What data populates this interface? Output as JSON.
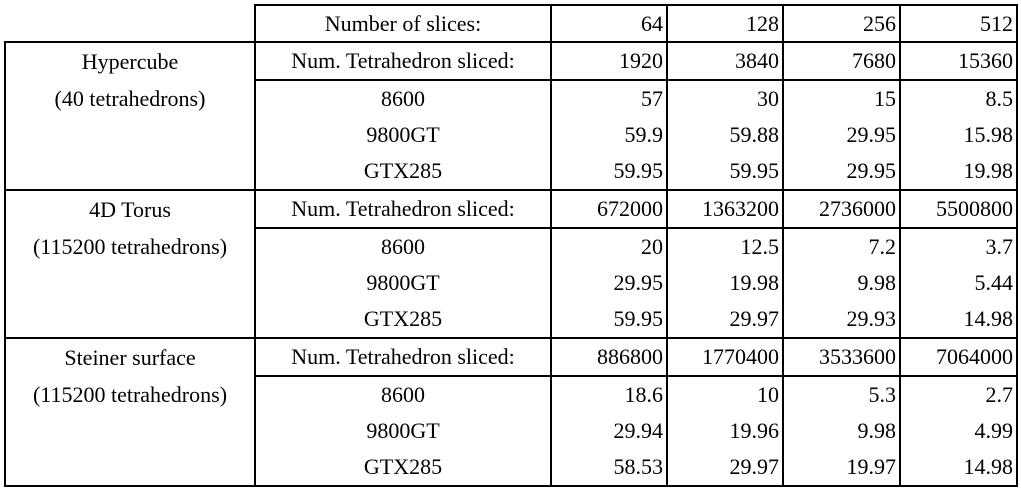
{
  "slices_label": "Number of slices:",
  "slices": [
    "64",
    "128",
    "256",
    "512"
  ],
  "groups": [
    {
      "name": "Hypercube",
      "subtitle": "(40 tetrahedrons)",
      "rows": [
        {
          "label": "Num. Tetrahedron sliced:",
          "values": [
            "1920",
            "3840",
            "7680",
            "15360"
          ]
        },
        {
          "label": "8600",
          "values": [
            "57",
            "30",
            "15",
            "8.5"
          ]
        },
        {
          "label": "9800GT",
          "values": [
            "59.9",
            "59.88",
            "29.95",
            "15.98"
          ]
        },
        {
          "label": "GTX285",
          "values": [
            "59.95",
            "59.95",
            "29.95",
            "19.98"
          ]
        }
      ]
    },
    {
      "name": "4D Torus",
      "subtitle": "(115200 tetrahedrons)",
      "rows": [
        {
          "label": "Num. Tetrahedron sliced:",
          "values": [
            "672000",
            "1363200",
            "2736000",
            "5500800"
          ]
        },
        {
          "label": "8600",
          "values": [
            "20",
            "12.5",
            "7.2",
            "3.7"
          ]
        },
        {
          "label": "9800GT",
          "values": [
            "29.95",
            "19.98",
            "9.98",
            "5.44"
          ]
        },
        {
          "label": "GTX285",
          "values": [
            "59.95",
            "29.97",
            "29.93",
            "14.98"
          ]
        }
      ]
    },
    {
      "name": "Steiner surface",
      "subtitle": "(115200 tetrahedrons)",
      "rows": [
        {
          "label": "Num. Tetrahedron sliced:",
          "values": [
            "886800",
            "1770400",
            "3533600",
            "7064000"
          ]
        },
        {
          "label": "8600",
          "values": [
            "18.6",
            "10",
            "5.3",
            "2.7"
          ]
        },
        {
          "label": "9800GT",
          "values": [
            "29.94",
            "19.96",
            "9.98",
            "4.99"
          ]
        },
        {
          "label": "GTX285",
          "values": [
            "58.53",
            "29.97",
            "19.97",
            "14.98"
          ]
        }
      ]
    }
  ]
}
